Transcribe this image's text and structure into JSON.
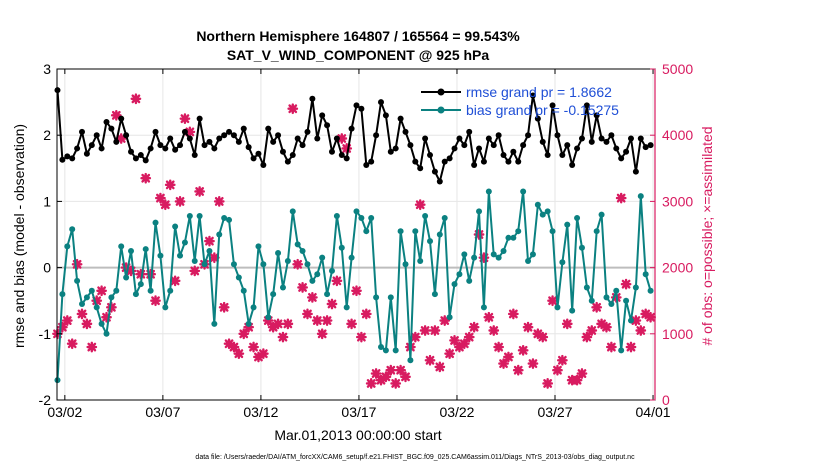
{
  "chart_data": {
    "type": "line",
    "title": "Northern Hemisphere 164807 / 165564 = 99.543%",
    "subtitle": "SAT_V_WIND_COMPONENT @ 925 hPa",
    "xlabel": "Mar.01,2013 00:00:00 start",
    "ylabel": "rmse and bias (model - observation)",
    "y2label": "# of obs: o=possible; ×=assimilated",
    "footnote": "data file: /Users/raeder/DAI/ATM_forcXX/CAM6_setup/f.e21.FHIST_BGC.f09_025.CAM6assim.011/Diags_NTrS_2013-03/obs_diag_output.nc",
    "xlim": [
      1.6,
      32.1
    ],
    "ylim": [
      -2,
      3
    ],
    "y2lim": [
      0,
      5000
    ],
    "xticks": [
      2,
      7,
      12,
      17,
      22,
      27,
      32
    ],
    "xticklabels": [
      "03/02",
      "03/07",
      "03/12",
      "03/17",
      "03/22",
      "03/27",
      "04/01"
    ],
    "yticks": [
      -2,
      -1,
      0,
      1,
      2,
      3
    ],
    "yticklabels": [
      "-2",
      "-1",
      "0",
      "1",
      "2",
      "3"
    ],
    "y2ticks": [
      0,
      1000,
      2000,
      3000,
      4000,
      5000
    ],
    "y2ticklabels": [
      "0",
      "1000",
      "2000",
      "3000",
      "4000",
      "5000"
    ],
    "grid": true,
    "zero_line": 0,
    "legend_position": "top-right",
    "colors": {
      "rmse": "#000000",
      "bias": "#0b8181",
      "obs": "#d81b60",
      "zero": "#bdbdbd",
      "legend_text": "#1f4fd6",
      "right_axis": "#d81b60"
    },
    "series": [
      {
        "name": "rmse grand pr = 1.8662",
        "axis": "left",
        "x": [
          1.625,
          1.875,
          2.125,
          2.375,
          2.625,
          2.875,
          3.125,
          3.375,
          3.625,
          3.875,
          4.125,
          4.375,
          4.625,
          4.875,
          5.125,
          5.375,
          5.625,
          5.875,
          6.125,
          6.375,
          6.625,
          6.875,
          7.125,
          7.375,
          7.625,
          7.875,
          8.125,
          8.375,
          8.625,
          8.875,
          9.125,
          9.375,
          9.625,
          9.875,
          10.125,
          10.375,
          10.625,
          10.875,
          11.125,
          11.375,
          11.625,
          11.875,
          12.125,
          12.375,
          12.625,
          12.875,
          13.125,
          13.375,
          13.625,
          13.875,
          14.125,
          14.375,
          14.625,
          14.875,
          15.125,
          15.375,
          15.625,
          15.875,
          16.125,
          16.375,
          16.625,
          16.875,
          17.125,
          17.375,
          17.625,
          17.875,
          18.125,
          18.375,
          18.625,
          18.875,
          19.125,
          19.375,
          19.625,
          19.875,
          20.125,
          20.375,
          20.625,
          20.875,
          21.125,
          21.375,
          21.625,
          21.875,
          22.125,
          22.375,
          22.625,
          22.875,
          23.125,
          23.375,
          23.625,
          23.875,
          24.125,
          24.375,
          24.625,
          24.875,
          25.125,
          25.375,
          25.625,
          25.875,
          26.125,
          26.375,
          26.625,
          26.875,
          27.125,
          27.375,
          27.625,
          27.875,
          28.125,
          28.375,
          28.625,
          28.875,
          29.125,
          29.375,
          29.625,
          29.875,
          30.125,
          30.375,
          30.625,
          30.875,
          31.125,
          31.375,
          31.625,
          31.875
        ],
        "values": [
          2.68,
          1.63,
          1.68,
          1.65,
          1.8,
          2.05,
          1.72,
          1.85,
          2.0,
          1.8,
          2.2,
          2.1,
          1.9,
          2.25,
          2.0,
          1.75,
          1.65,
          1.7,
          1.62,
          1.8,
          2.05,
          1.85,
          1.8,
          1.95,
          1.78,
          1.85,
          2.05,
          1.95,
          1.7,
          2.25,
          1.85,
          1.9,
          1.8,
          1.95,
          2.0,
          2.05,
          2.0,
          1.9,
          2.1,
          1.82,
          1.65,
          1.72,
          1.55,
          2.1,
          1.9,
          2.0,
          1.75,
          1.6,
          1.7,
          1.95,
          1.85,
          2.05,
          2.55,
          1.95,
          2.3,
          2.15,
          1.75,
          1.95,
          1.7,
          1.65,
          2.1,
          2.45,
          2.4,
          1.55,
          1.6,
          2.0,
          2.5,
          2.3,
          1.75,
          1.8,
          2.25,
          2.05,
          1.85,
          1.6,
          1.5,
          1.95,
          1.7,
          1.45,
          1.3,
          1.6,
          1.65,
          1.8,
          1.95,
          1.85,
          2.05,
          1.55,
          1.8,
          1.6,
          1.95,
          1.85,
          2.0,
          1.7,
          1.6,
          1.75,
          1.6,
          1.85,
          2.0,
          2.6,
          2.25,
          1.9,
          1.7,
          2.45,
          2.0,
          1.7,
          1.85,
          1.55,
          1.8,
          1.95,
          2.45,
          1.9,
          2.3,
          1.95,
          1.9,
          2.0,
          1.8,
          1.65,
          1.75,
          1.95,
          1.45,
          1.95,
          1.82,
          1.85
        ]
      },
      {
        "name": "bias grand pr = -0.15275",
        "axis": "left",
        "x": [
          1.625,
          1.875,
          2.125,
          2.375,
          2.625,
          2.875,
          3.125,
          3.375,
          3.625,
          3.875,
          4.125,
          4.375,
          4.625,
          4.875,
          5.125,
          5.375,
          5.625,
          5.875,
          6.125,
          6.375,
          6.625,
          6.875,
          7.125,
          7.375,
          7.625,
          7.875,
          8.125,
          8.375,
          8.625,
          8.875,
          9.125,
          9.375,
          9.625,
          9.875,
          10.125,
          10.375,
          10.625,
          10.875,
          11.125,
          11.375,
          11.625,
          11.875,
          12.125,
          12.375,
          12.625,
          12.875,
          13.125,
          13.375,
          13.625,
          13.875,
          14.125,
          14.375,
          14.625,
          14.875,
          15.125,
          15.375,
          15.625,
          15.875,
          16.125,
          16.375,
          16.625,
          16.875,
          17.125,
          17.375,
          17.625,
          17.875,
          18.125,
          18.375,
          18.625,
          18.875,
          19.125,
          19.375,
          19.625,
          19.875,
          20.125,
          20.375,
          20.625,
          20.875,
          21.125,
          21.375,
          21.625,
          21.875,
          22.125,
          22.375,
          22.625,
          22.875,
          23.125,
          23.375,
          23.625,
          23.875,
          24.125,
          24.375,
          24.625,
          24.875,
          25.125,
          25.375,
          25.625,
          25.875,
          26.125,
          26.375,
          26.625,
          26.875,
          27.125,
          27.375,
          27.625,
          27.875,
          28.125,
          28.375,
          28.625,
          28.875,
          29.125,
          29.375,
          29.625,
          29.875,
          30.125,
          30.375,
          30.625,
          30.875,
          31.125,
          31.375,
          31.625,
          31.875
        ],
        "values": [
          -1.7,
          -0.4,
          0.32,
          0.58,
          -0.2,
          -0.55,
          -0.45,
          -0.35,
          -0.6,
          -0.85,
          -1.0,
          -0.45,
          -0.35,
          0.32,
          -0.15,
          0.25,
          -0.4,
          -0.25,
          0.28,
          -0.35,
          0.68,
          0.18,
          -0.6,
          -0.35,
          0.62,
          0.18,
          0.38,
          0.78,
          0.1,
          0.78,
          0.05,
          0.25,
          -0.85,
          0.5,
          0.75,
          0.72,
          0.05,
          -0.15,
          -0.35,
          -0.85,
          -0.6,
          0.32,
          0.05,
          -0.75,
          -0.4,
          0.22,
          -0.3,
          0.1,
          0.85,
          0.35,
          0.25,
          0.05,
          -0.2,
          -0.1,
          0.15,
          -0.4,
          -0.05,
          0.78,
          0.3,
          -0.6,
          0.15,
          0.85,
          0.75,
          0.55,
          0.75,
          -0.45,
          -1.2,
          -1.25,
          -0.45,
          -1.25,
          0.55,
          0.05,
          -1.4,
          0.55,
          0.1,
          0.78,
          0.4,
          -0.4,
          0.5,
          0.75,
          -0.75,
          -0.25,
          -0.1,
          0.2,
          -0.2,
          0.15,
          0.85,
          -0.6,
          1.15,
          0.2,
          0.15,
          0.25,
          0.45,
          0.45,
          0.55,
          1.15,
          0.1,
          0.2,
          0.95,
          0.8,
          0.85,
          0.55,
          -0.6,
          0.08,
          0.65,
          -0.65,
          0.75,
          0.3,
          -0.3,
          -0.5,
          0.55,
          0.8,
          -0.45,
          -0.55,
          -0.35,
          -1.25,
          -0.5,
          -0.8,
          -0.3,
          1.08,
          -0.1,
          -0.35
        ]
      },
      {
        "name": "obs assimilated",
        "axis": "right",
        "marker": "x",
        "x": [
          1.625,
          1.875,
          2.125,
          2.375,
          2.625,
          2.875,
          3.125,
          3.375,
          3.625,
          3.875,
          4.125,
          4.375,
          4.625,
          4.875,
          5.125,
          5.375,
          5.625,
          5.875,
          6.125,
          6.375,
          6.625,
          6.875,
          7.125,
          7.375,
          7.625,
          7.875,
          8.125,
          8.375,
          8.625,
          8.875,
          9.125,
          9.375,
          9.625,
          9.875,
          10.125,
          10.375,
          10.625,
          10.875,
          11.125,
          11.375,
          11.625,
          11.875,
          12.125,
          12.375,
          12.625,
          12.875,
          13.125,
          13.375,
          13.625,
          13.875,
          14.125,
          14.375,
          14.625,
          14.875,
          15.125,
          15.375,
          15.625,
          15.875,
          16.125,
          16.375,
          16.625,
          16.875,
          17.125,
          17.375,
          17.625,
          17.875,
          18.125,
          18.375,
          18.625,
          18.875,
          19.125,
          19.375,
          19.625,
          19.875,
          20.125,
          20.375,
          20.625,
          20.875,
          21.125,
          21.375,
          21.625,
          21.875,
          22.125,
          22.375,
          22.625,
          22.875,
          23.125,
          23.375,
          23.625,
          23.875,
          24.125,
          24.375,
          24.625,
          24.875,
          25.125,
          25.375,
          25.625,
          25.875,
          26.125,
          26.375,
          26.625,
          26.875,
          27.125,
          27.375,
          27.625,
          27.875,
          28.125,
          28.375,
          28.625,
          28.875,
          29.125,
          29.375,
          29.625,
          29.875,
          30.125,
          30.375,
          30.625,
          30.875,
          31.125,
          31.375,
          31.625,
          31.875
        ],
        "values": [
          1000,
          1100,
          1200,
          850,
          2050,
          1300,
          1150,
          800,
          1500,
          1650,
          1250,
          1400,
          4300,
          3950,
          2000,
          1950,
          4550,
          1900,
          3350,
          1900,
          1500,
          3050,
          2950,
          3250,
          1800,
          3000,
          4250,
          4050,
          1950,
          3150,
          2050,
          2400,
          2150,
          3000,
          1400,
          850,
          800,
          700,
          1000,
          1100,
          800,
          650,
          700,
          1200,
          1100,
          1150,
          950,
          1150,
          4400,
          2050,
          1700,
          1300,
          1550,
          1200,
          1000,
          1200,
          1450,
          1800,
          3950,
          3800,
          1150,
          1650,
          950,
          1300,
          250,
          400,
          300,
          350,
          450,
          250,
          450,
          350,
          800,
          950,
          2950,
          1050,
          600,
          1050,
          500,
          1200,
          700,
          900,
          800,
          850,
          950,
          1100,
          2500,
          2150,
          1250,
          1050,
          800,
          550,
          650,
          1300,
          450,
          750,
          1100,
          550,
          1000,
          950,
          250,
          1500,
          450,
          600,
          1150,
          300,
          300,
          400,
          950,
          1050,
          1400,
          1150,
          1100,
          800,
          1550,
          3050,
          1750,
          800,
          1200,
          1050,
          1300,
          1250
        ]
      }
    ]
  }
}
